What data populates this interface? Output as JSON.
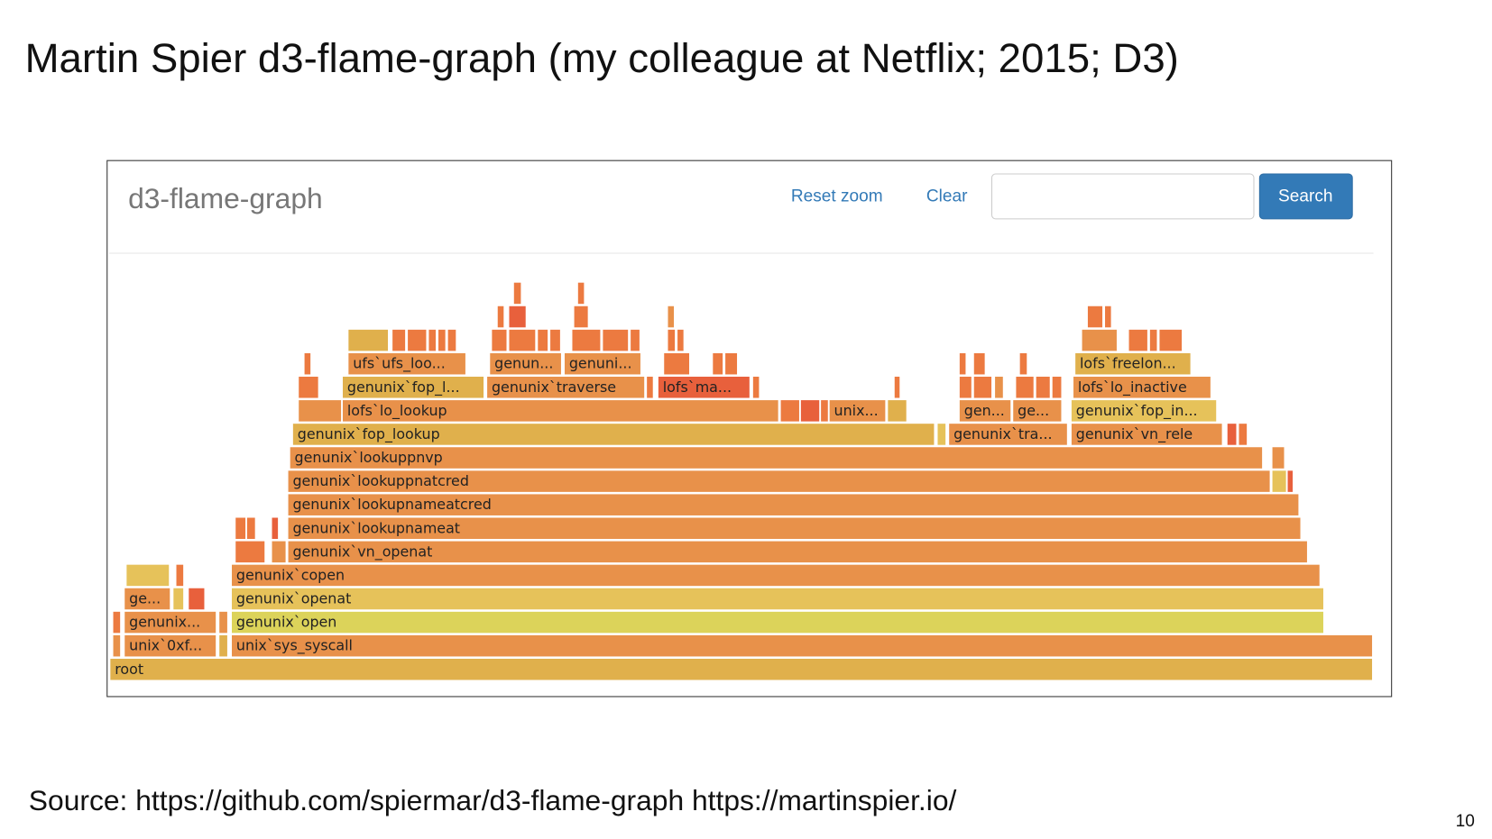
{
  "slide": {
    "title": "Martin Spier d3-flame-graph (my colleague at Netflix; 2015; D3)",
    "source": "Source: https://github.com/spiermar/d3-flame-graph  https://martinspier.io/",
    "page_number": 10
  },
  "app": {
    "title": "d3-flame-graph",
    "reset_zoom": "Reset zoom",
    "clear": "Clear",
    "search": "Search"
  },
  "frames": [
    {
      "label": "root"
    },
    {
      "label": "unix`0xf..."
    },
    {
      "label": "unix`sys_syscall"
    },
    {
      "label": "genunix..."
    },
    {
      "label": "genunix`open"
    },
    {
      "label": "ge..."
    },
    {
      "label": "genunix`openat"
    },
    {
      "label": "genunix`copen"
    },
    {
      "label": "genunix`vn_openat"
    },
    {
      "label": "genunix`lookupnameat"
    },
    {
      "label": "genunix`lookupnameatcred"
    },
    {
      "label": "genunix`lookuppnatcred"
    },
    {
      "label": "genunix`lookuppnvp"
    },
    {
      "label": "genunix`fop_lookup"
    },
    {
      "label": "genunix`tra..."
    },
    {
      "label": "genunix`vn_rele"
    },
    {
      "label": "lofs`lo_lookup"
    },
    {
      "label": "unix..."
    },
    {
      "label": "gen..."
    },
    {
      "label": "ge..."
    },
    {
      "label": "genunix`fop_in..."
    },
    {
      "label": "genunix`fop_l..."
    },
    {
      "label": "genunix`traverse"
    },
    {
      "label": "lofs`ma..."
    },
    {
      "label": "lofs`lo_inactive"
    },
    {
      "label": "ufs`ufs_loo..."
    },
    {
      "label": "genun..."
    },
    {
      "label": "genuni..."
    },
    {
      "label": "lofs`freelon..."
    }
  ]
}
